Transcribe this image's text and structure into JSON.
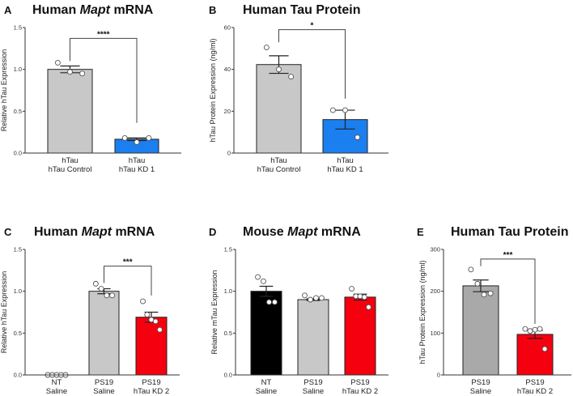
{
  "chart_data": [
    {
      "panel": "A",
      "type": "bar",
      "title_parts": [
        {
          "text": "Human ",
          "italic": false
        },
        {
          "text": "Mapt",
          "italic": true
        },
        {
          "text": " mRNA",
          "italic": false
        }
      ],
      "ylabel": "Relative hTau Expression",
      "ylim": [
        0,
        1.5
      ],
      "ticks": [
        "0.0",
        "0.5",
        "1.0",
        "1.5"
      ],
      "tick_values": [
        0,
        0.5,
        1.0,
        1.5
      ],
      "categories": [
        [
          "hTau",
          "hTau Control"
        ],
        [
          "hTau",
          "hTau KD 1"
        ]
      ],
      "bars": [
        {
          "mean": 1.0,
          "sem": 0.04,
          "color": "#c8c8c8",
          "points": [
            1.08,
            0.97,
            0.95
          ]
        },
        {
          "mean": 0.165,
          "sem": 0.015,
          "color": "#1b7ff0",
          "points": [
            0.18,
            0.13,
            0.18
          ]
        }
      ],
      "significance": {
        "from": 0,
        "to": 1,
        "label": "****",
        "level": 1.37,
        "left_end": 1.1,
        "right_end": 0.36
      }
    },
    {
      "panel": "B",
      "type": "bar",
      "title_parts": [
        {
          "text": "Human Tau Protein",
          "italic": false
        }
      ],
      "ylabel": "hTau Protein Expression (ng/ml)",
      "ylim": [
        0,
        60
      ],
      "ticks": [
        "0",
        "20",
        "40",
        "60"
      ],
      "tick_values": [
        0,
        20,
        40,
        60
      ],
      "categories": [
        [
          "hTau",
          "hTau Control"
        ],
        [
          "hTau",
          "hTau KD 1"
        ]
      ],
      "bars": [
        {
          "mean": 42.3,
          "sem": 4.2,
          "color": "#c8c8c8",
          "points": [
            50.5,
            40,
            36.5
          ]
        },
        {
          "mean": 16,
          "sem": 4.5,
          "color": "#1b7ff0",
          "points": [
            20.5,
            20.5,
            7.5
          ]
        }
      ],
      "significance": {
        "from": 0,
        "to": 1,
        "label": "*",
        "level": 59,
        "left_end": 53,
        "right_end": 26
      }
    },
    {
      "panel": "C",
      "type": "bar",
      "title_parts": [
        {
          "text": "Human ",
          "italic": false
        },
        {
          "text": "Mapt",
          "italic": true
        },
        {
          "text": " mRNA",
          "italic": false
        }
      ],
      "ylabel": "Relative hTau Expression",
      "ylim": [
        0,
        1.5
      ],
      "ticks": [
        "0.0",
        "0.5",
        "1.0",
        "1.5"
      ],
      "tick_values": [
        0,
        0.5,
        1.0,
        1.5
      ],
      "categories": [
        [
          "NT",
          "Saline"
        ],
        [
          "PS19",
          "Saline"
        ],
        [
          "PS19",
          "hTau KD 2"
        ]
      ],
      "bars": [
        {
          "mean": 0,
          "sem": 0,
          "color": "#ffffff",
          "points": [
            0,
            0,
            0,
            0,
            0
          ]
        },
        {
          "mean": 1.0,
          "sem": 0.03,
          "color": "#c8c8c8",
          "points": [
            1.09,
            1.03,
            0.95,
            0.95
          ]
        },
        {
          "mean": 0.69,
          "sem": 0.06,
          "color": "#f5000f",
          "points": [
            0.88,
            0.72,
            0.66,
            0.64,
            0.54
          ]
        }
      ],
      "significance": {
        "from": 1,
        "to": 2,
        "label": "***",
        "level": 1.3,
        "left_end": 1.1,
        "right_end": 0.95
      }
    },
    {
      "panel": "D",
      "type": "bar",
      "title_parts": [
        {
          "text": "Mouse ",
          "italic": false
        },
        {
          "text": "Mapt",
          "italic": true
        },
        {
          "text": " mRNA",
          "italic": false
        }
      ],
      "ylabel": "Relative mTau Expression",
      "ylim": [
        0,
        1.5
      ],
      "ticks": [
        "0.0",
        "0.5",
        "1.0",
        "1.5"
      ],
      "tick_values": [
        0,
        0.5,
        1.0,
        1.5
      ],
      "categories": [
        [
          "NT",
          "Saline"
        ],
        [
          "PS19",
          "Saline"
        ],
        [
          "PS19",
          "hTau KD 2"
        ]
      ],
      "bars": [
        {
          "mean": 1.0,
          "sem": 0.06,
          "color": "#000000",
          "points": [
            1.17,
            1.12,
            0.87,
            0.87
          ]
        },
        {
          "mean": 0.9,
          "sem": 0.01,
          "color": "#c8c8c8",
          "points": [
            0.95,
            0.9,
            0.92,
            0.92
          ]
        },
        {
          "mean": 0.93,
          "sem": 0.035,
          "color": "#f5000f",
          "points": [
            1.03,
            0.94,
            0.94,
            0.93,
            0.81
          ]
        }
      ],
      "significance": null
    },
    {
      "panel": "E",
      "type": "bar",
      "title_parts": [
        {
          "text": "Human Tau Protein",
          "italic": false
        }
      ],
      "ylabel": "hTau Protein Expression (ng/ml)",
      "ylim": [
        0,
        300
      ],
      "ticks": [
        "0",
        "100",
        "200",
        "300"
      ],
      "tick_values": [
        0,
        100,
        200,
        300
      ],
      "categories": [
        [
          "PS19",
          "Saline"
        ],
        [
          "PS19",
          "hTau KD 2"
        ]
      ],
      "bars": [
        {
          "mean": 213,
          "sem": 14,
          "color": "#a9a9a9",
          "points": [
            252,
            218,
            192,
            195
          ]
        },
        {
          "mean": 97,
          "sem": 9.5,
          "color": "#f5000f",
          "points": [
            110,
            105,
            108,
            110,
            62
          ]
        }
      ],
      "significance": {
        "from": 0,
        "to": 1,
        "label": "***",
        "level": 277,
        "left_end": 260,
        "right_end": 122
      }
    }
  ]
}
